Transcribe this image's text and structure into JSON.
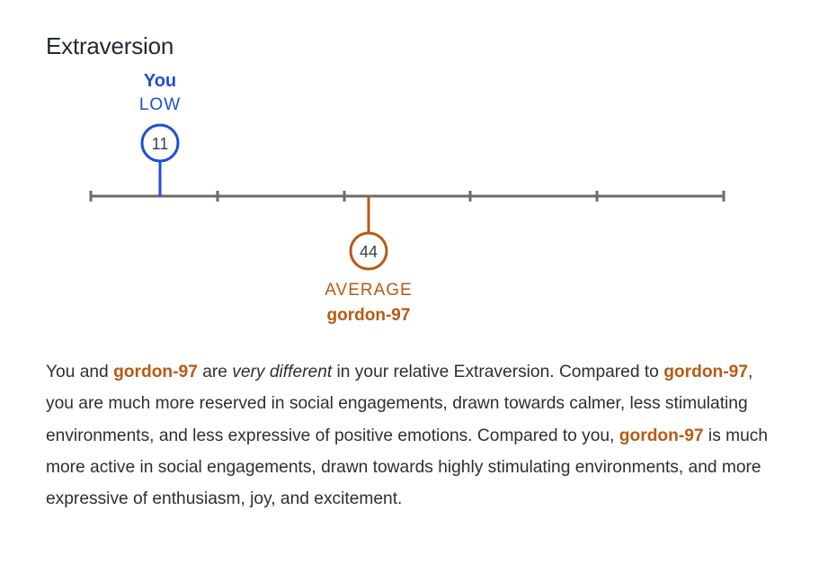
{
  "trait": {
    "title": "Extraversion"
  },
  "scale": {
    "you": {
      "name": "You",
      "level": "LOW",
      "score": "11",
      "color": "#1f4fd1"
    },
    "other": {
      "name": "gordon-97",
      "level": "AVERAGE",
      "score": "44",
      "color": "#b85a14"
    },
    "axis_color": "#6b6b6b"
  },
  "description": {
    "p1": "You and ",
    "name1": "gordon-97",
    "p2": " are ",
    "emph": "very different",
    "p3": " in your relative Extraversion. Compared to ",
    "name2": "gordon-97",
    "p4": ", you are much more reserved in social engagements, drawn towards calmer, less stimulating environments, and less expressive of positive emotions. Compared to you, ",
    "name3": "gordon-97",
    "p5": " is much more active in social engagements, drawn towards highly stimulating environments, and more expressive of enthusiasm, joy, and excitement."
  }
}
